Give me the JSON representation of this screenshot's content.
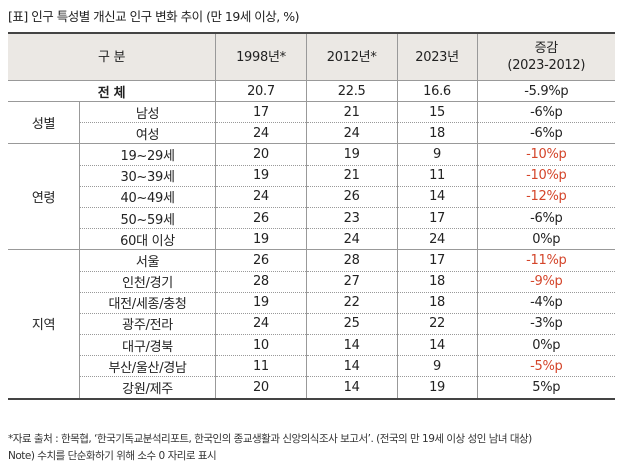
{
  "title": "[표] 인구 특성별 개신교 인구 변화 추이 (만 19세 이상, %)",
  "headers": [
    "구 분",
    "1998년*",
    "2012년*",
    "2023년",
    "증감",
    "(2023-2012)"
  ],
  "total": {
    "label": "전 체",
    "values": [
      "20.7",
      "22.5",
      "16.6",
      "-5.9%p"
    ]
  },
  "groups": [
    {
      "name": "성별",
      "rows": [
        {
          "label": "남성",
          "values": [
            "17",
            "21",
            "15",
            "-6%p"
          ],
          "highlight": false
        },
        {
          "label": "여성",
          "values": [
            "24",
            "24",
            "18",
            "-6%p"
          ],
          "highlight": false
        }
      ]
    },
    {
      "name": "연령",
      "rows": [
        {
          "label": "19~29세",
          "values": [
            "20",
            "19",
            "9",
            "-10%p"
          ],
          "highlight": true
        },
        {
          "label": "30~39세",
          "values": [
            "19",
            "21",
            "11",
            "-10%p"
          ],
          "highlight": true
        },
        {
          "label": "40~49세",
          "values": [
            "24",
            "26",
            "14",
            "-12%p"
          ],
          "highlight": true
        },
        {
          "label": "50~59세",
          "values": [
            "26",
            "23",
            "17",
            "-6%p"
          ],
          "highlight": false
        },
        {
          "label": "60대 이상",
          "values": [
            "19",
            "24",
            "24",
            "0%p"
          ],
          "highlight": false
        }
      ]
    },
    {
      "name": "지역",
      "rows": [
        {
          "label": "서울",
          "values": [
            "26",
            "28",
            "17",
            "-11%p"
          ],
          "highlight": true
        },
        {
          "label": "인천/경기",
          "values": [
            "28",
            "27",
            "18",
            "-9%p"
          ],
          "highlight": true
        },
        {
          "label": "대전/세종/충청",
          "values": [
            "19",
            "22",
            "18",
            "-4%p"
          ],
          "highlight": false
        },
        {
          "label": "광주/전라",
          "values": [
            "24",
            "25",
            "22",
            "-3%p"
          ],
          "highlight": false
        },
        {
          "label": "대구/경북",
          "values": [
            "10",
            "14",
            "14",
            "0%p"
          ],
          "highlight": false
        },
        {
          "label": "부산/울산/경남",
          "values": [
            "11",
            "14",
            "9",
            "-5%p"
          ],
          "highlight": true
        },
        {
          "label": "강원/제주",
          "values": [
            "20",
            "14",
            "19",
            "5%p"
          ],
          "highlight": false
        }
      ]
    }
  ],
  "notes": [
    "*자료 출처 : 한목협, ‘한국기독교분석리포트, 한국인의 종교생활과 신앙의식조사 보고서’. (전국의 만 19세 이상 성인 남녀 대상)",
    "Note) 수치를 단순화하기 위해 소수 0 자리로 표시"
  ],
  "colors": {
    "highlight": "#d4452a",
    "header_bg": "#ebe8e4"
  }
}
